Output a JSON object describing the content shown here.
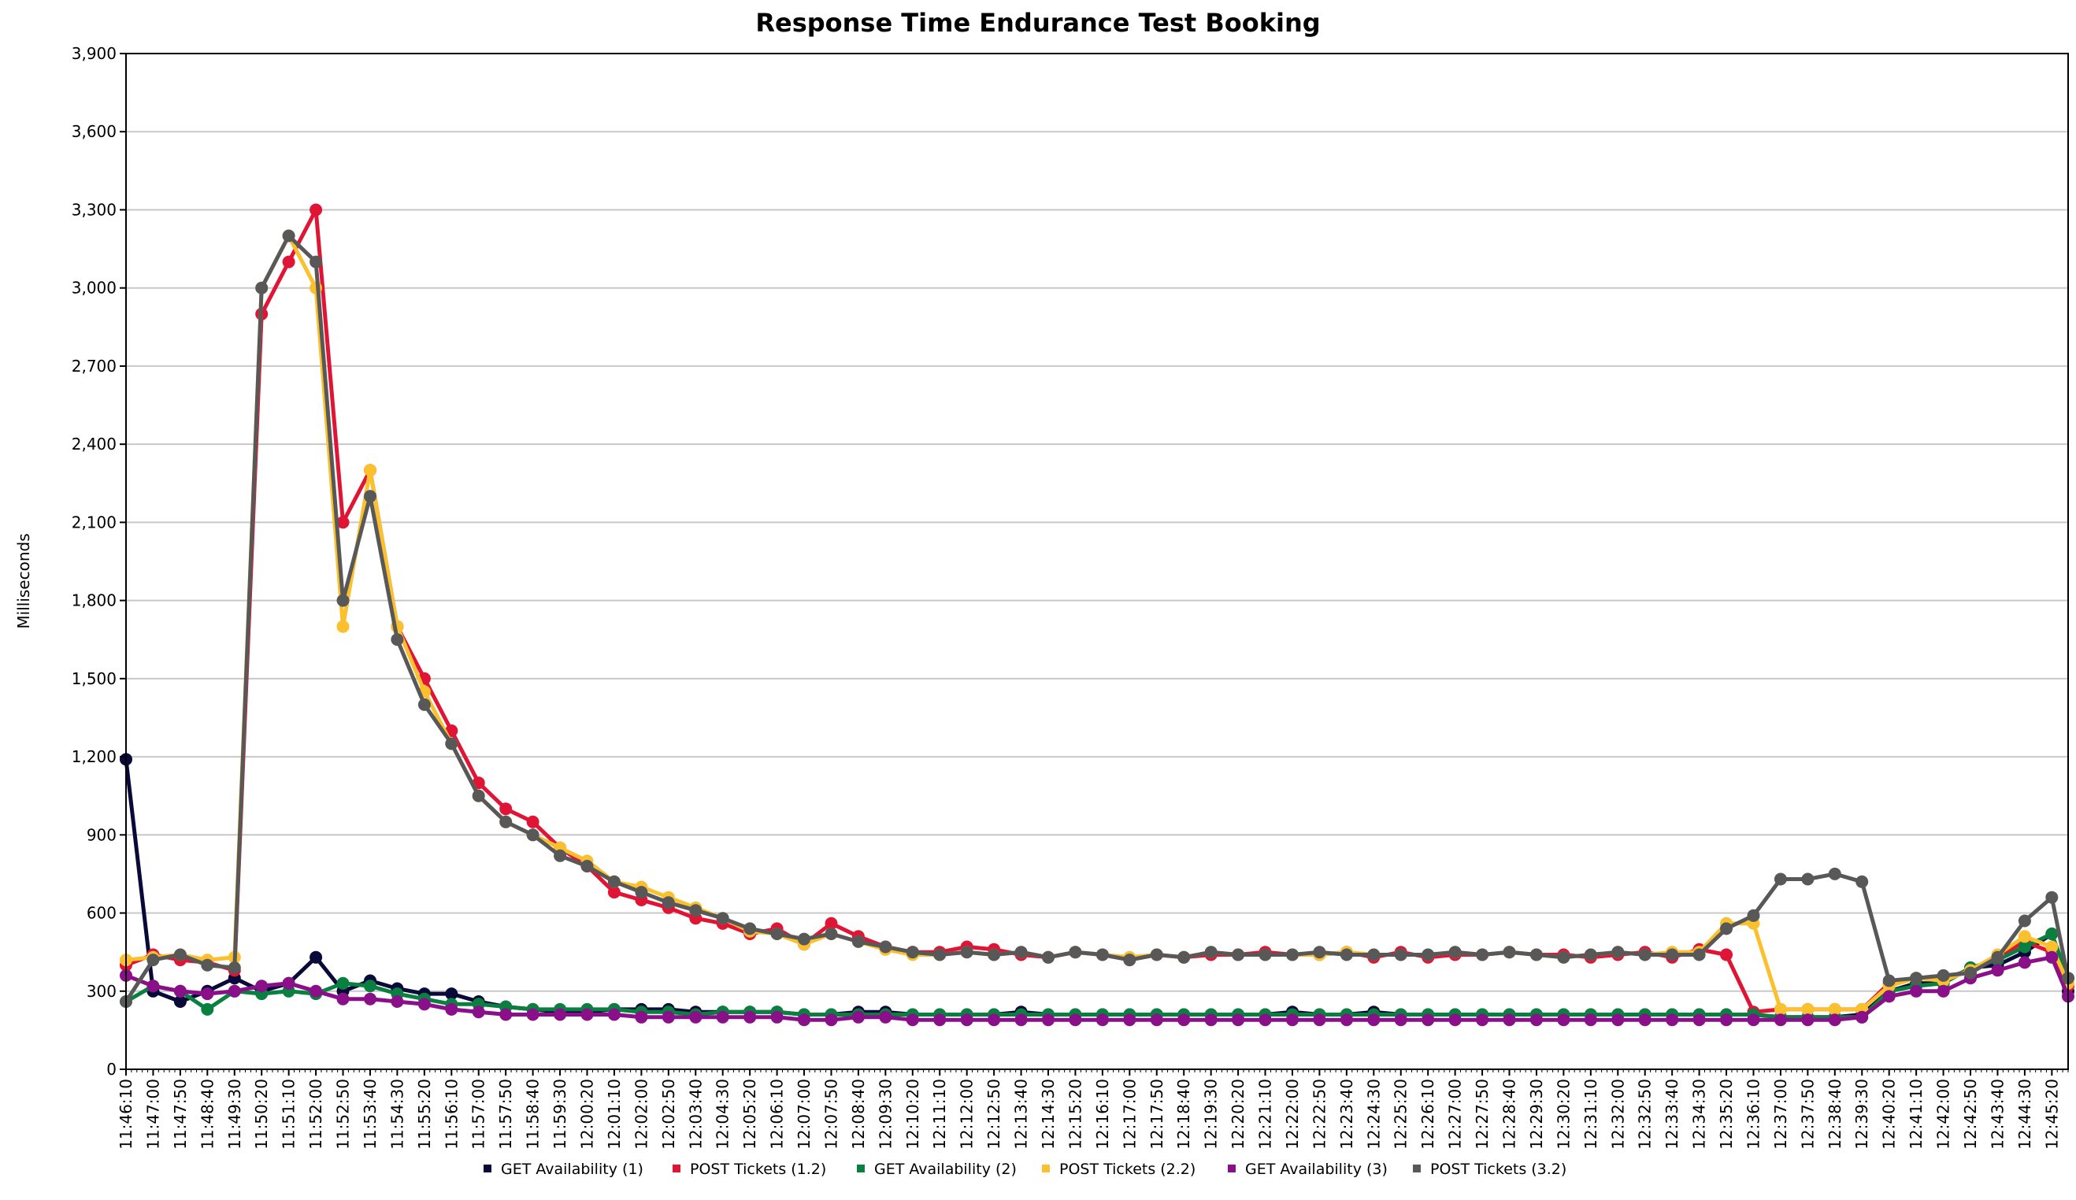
{
  "chart_data": {
    "type": "line",
    "title": "Response Time Endurance Test Booking",
    "xlabel": "",
    "ylabel": "Milliseconds",
    "ylim": [
      0,
      3900
    ],
    "yticks": [
      0,
      300,
      600,
      900,
      1200,
      1500,
      1800,
      2100,
      2400,
      2700,
      3000,
      3300,
      3600,
      3900
    ],
    "ytick_labels": [
      "0",
      "300",
      "600",
      "900",
      "1,200",
      "1,500",
      "1,800",
      "2,100",
      "2,400",
      "2,700",
      "3,000",
      "3,300",
      "3,600",
      "3,900"
    ],
    "x_unit": "time (HH:MM:SS)",
    "x_start": "11:46:10",
    "x_end": "12:45:50",
    "x_tick_labels": [
      "11:46:10",
      "11:47:00",
      "11:47:50",
      "11:48:40",
      "11:49:30",
      "11:50:20",
      "11:51:10",
      "11:52:00",
      "11:52:50",
      "11:53:40",
      "11:54:30",
      "11:55:20",
      "11:56:10",
      "11:57:00",
      "11:57:50",
      "11:58:40",
      "11:59:30",
      "12:00:20",
      "12:01:10",
      "12:02:00",
      "12:02:50",
      "12:03:40",
      "12:04:30",
      "12:05:20",
      "12:06:10",
      "12:07:00",
      "12:07:50",
      "12:08:40",
      "12:09:30",
      "12:10:20",
      "12:11:10",
      "12:12:00",
      "12:12:50",
      "12:13:40",
      "12:14:30",
      "12:15:20",
      "12:16:10",
      "12:17:00",
      "12:17:50",
      "12:18:40",
      "12:19:30",
      "12:20:20",
      "12:21:10",
      "12:22:00",
      "12:22:50",
      "12:23:40",
      "12:24:30",
      "12:25:20",
      "12:26:10",
      "12:27:00",
      "12:27:50",
      "12:28:40",
      "12:29:30",
      "12:30:20",
      "12:31:10",
      "12:32:00",
      "12:32:50",
      "12:33:40",
      "12:34:30",
      "12:35:20",
      "12:36:10",
      "12:37:00",
      "12:37:50",
      "12:38:40",
      "12:39:30",
      "12:40:20",
      "12:41:10",
      "12:42:00",
      "12:42:50",
      "12:43:40",
      "12:44:30",
      "12:45:20"
    ],
    "grid": true,
    "legend_position": "bottom",
    "x": [
      "11:46:10",
      "11:47:00",
      "11:47:50",
      "11:48:40",
      "11:49:30",
      "11:50:20",
      "11:51:10",
      "11:52:00",
      "11:52:50",
      "11:53:40",
      "11:54:30",
      "11:55:20",
      "11:56:10",
      "11:57:00",
      "11:57:50",
      "11:58:40",
      "11:59:30",
      "12:00:20",
      "12:01:10",
      "12:02:00",
      "12:02:50",
      "12:03:40",
      "12:04:30",
      "12:05:20",
      "12:06:10",
      "12:07:00",
      "12:07:50",
      "12:08:40",
      "12:09:30",
      "12:10:20",
      "12:11:10",
      "12:12:00",
      "12:12:50",
      "12:13:40",
      "12:14:30",
      "12:15:20",
      "12:16:10",
      "12:17:00",
      "12:17:50",
      "12:18:40",
      "12:19:30",
      "12:20:20",
      "12:21:10",
      "12:22:00",
      "12:22:50",
      "12:23:40",
      "12:24:30",
      "12:25:20",
      "12:26:10",
      "12:27:00",
      "12:27:50",
      "12:28:40",
      "12:29:30",
      "12:30:20",
      "12:31:10",
      "12:32:00",
      "12:32:50",
      "12:33:40",
      "12:34:30",
      "12:35:20",
      "12:36:10",
      "12:37:00",
      "12:37:50",
      "12:38:40",
      "12:39:30",
      "12:40:20",
      "12:41:10",
      "12:42:00",
      "12:42:50",
      "12:43:40",
      "12:44:30",
      "12:45:20",
      "12:45:50"
    ],
    "series": [
      {
        "name": "GET Availability (1)",
        "color": "#0a0a3a",
        "values": [
          1190,
          300,
          260,
          300,
          350,
          300,
          330,
          430,
          300,
          340,
          310,
          290,
          290,
          260,
          240,
          230,
          220,
          220,
          230,
          230,
          230,
          220,
          220,
          220,
          220,
          210,
          210,
          220,
          220,
          210,
          210,
          210,
          210,
          220,
          210,
          210,
          210,
          210,
          210,
          210,
          210,
          210,
          210,
          220,
          210,
          210,
          220,
          210,
          210,
          210,
          210,
          210,
          210,
          210,
          210,
          210,
          210,
          210,
          210,
          210,
          210,
          200,
          200,
          200,
          210,
          300,
          330,
          330,
          390,
          400,
          450,
          520,
          300
        ]
      },
      {
        "name": "POST Tickets (1.2)",
        "color": "#e01535",
        "values": [
          400,
          440,
          420,
          410,
          380,
          2900,
          3100,
          3300,
          2100,
          2300,
          1700,
          1500,
          1300,
          1100,
          1000,
          950,
          850,
          780,
          680,
          650,
          620,
          580,
          560,
          520,
          540,
          480,
          560,
          510,
          470,
          450,
          450,
          470,
          460,
          440,
          430,
          450,
          440,
          420,
          440,
          430,
          440,
          440,
          450,
          440,
          440,
          450,
          430,
          450,
          430,
          440,
          440,
          450,
          440,
          440,
          430,
          440,
          450,
          430,
          460,
          440,
          220,
          230,
          230,
          230,
          230,
          330,
          350,
          350,
          380,
          430,
          490,
          450,
          320
        ]
      },
      {
        "name": "GET Availability (2)",
        "color": "#0a8040",
        "values": [
          260,
          320,
          300,
          230,
          300,
          290,
          300,
          290,
          330,
          320,
          290,
          270,
          250,
          250,
          240,
          230,
          230,
          230,
          230,
          220,
          220,
          210,
          220,
          220,
          220,
          210,
          210,
          210,
          210,
          210,
          210,
          210,
          210,
          210,
          210,
          210,
          210,
          210,
          210,
          210,
          210,
          210,
          210,
          210,
          210,
          210,
          210,
          210,
          210,
          210,
          210,
          210,
          210,
          210,
          210,
          210,
          210,
          210,
          210,
          210,
          210,
          200,
          200,
          200,
          200,
          300,
          320,
          330,
          390,
          420,
          470,
          520,
          350
        ]
      },
      {
        "name": "POST Tickets (2.2)",
        "color": "#fbc02d",
        "values": [
          420,
          430,
          440,
          420,
          430,
          3000,
          3200,
          3000,
          1700,
          2300,
          1700,
          1450,
          1250,
          1050,
          950,
          900,
          850,
          800,
          720,
          700,
          660,
          620,
          580,
          530,
          520,
          480,
          520,
          490,
          460,
          440,
          440,
          450,
          440,
          450,
          430,
          450,
          440,
          430,
          440,
          430,
          450,
          440,
          440,
          440,
          440,
          450,
          440,
          440,
          440,
          450,
          440,
          450,
          440,
          430,
          440,
          450,
          440,
          450,
          450,
          560,
          560,
          230,
          230,
          230,
          230,
          320,
          350,
          340,
          380,
          440,
          510,
          470,
          330
        ]
      },
      {
        "name": "GET Availability (3)",
        "color": "#8a108a",
        "values": [
          360,
          320,
          300,
          290,
          300,
          320,
          330,
          300,
          270,
          270,
          260,
          250,
          230,
          220,
          210,
          210,
          210,
          210,
          210,
          200,
          200,
          200,
          200,
          200,
          200,
          190,
          190,
          200,
          200,
          190,
          190,
          190,
          190,
          190,
          190,
          190,
          190,
          190,
          190,
          190,
          190,
          190,
          190,
          190,
          190,
          190,
          190,
          190,
          190,
          190,
          190,
          190,
          190,
          190,
          190,
          190,
          190,
          190,
          190,
          190,
          190,
          190,
          190,
          190,
          200,
          280,
          300,
          300,
          350,
          380,
          410,
          430,
          280
        ]
      },
      {
        "name": "POST Tickets (3.2)",
        "color": "#585858",
        "values": [
          260,
          420,
          440,
          400,
          390,
          3000,
          3200,
          3100,
          1800,
          2200,
          1650,
          1400,
          1250,
          1050,
          950,
          900,
          820,
          780,
          720,
          680,
          640,
          610,
          580,
          540,
          520,
          500,
          520,
          490,
          470,
          450,
          440,
          450,
          440,
          450,
          430,
          450,
          440,
          420,
          440,
          430,
          450,
          440,
          440,
          440,
          450,
          440,
          440,
          440,
          440,
          450,
          440,
          450,
          440,
          430,
          440,
          450,
          440,
          440,
          440,
          540,
          590,
          730,
          730,
          750,
          720,
          340,
          350,
          360,
          370,
          430,
          570,
          660,
          350
        ]
      }
    ]
  }
}
